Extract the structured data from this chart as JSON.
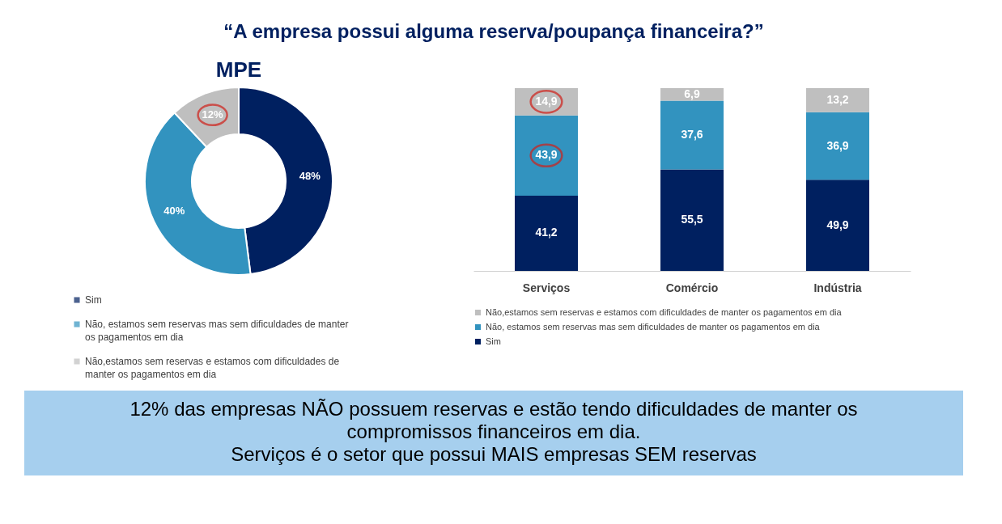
{
  "chart_data": [
    {
      "type": "donut",
      "title": "“A empresa possui alguma reserva/poupança financeira?”",
      "subtitle": "MPE",
      "categories": [
        "Sim",
        "Não, estamos sem reservas mas sem dificuldades de manter os pagamentos em dia",
        "Não,estamos sem reservas e estamos com dificuldades de manter os pagamentos em dia"
      ],
      "values": [
        48,
        40,
        12
      ],
      "value_labels": [
        "48%",
        "40%",
        "12%"
      ],
      "colors": [
        "#002060",
        "#3293bf",
        "#bfbfbf"
      ],
      "legend": "bottom left"
    },
    {
      "type": "bar",
      "stacked": true,
      "categories": [
        "Serviços",
        "Comércio",
        "Indústria"
      ],
      "series": [
        {
          "name": "Sim",
          "color": "#002060",
          "values": [
            41.2,
            55.5,
            49.9
          ],
          "value_labels": [
            "41,2",
            "55,5",
            "49,9"
          ]
        },
        {
          "name": "Não, estamos sem reservas mas sem dificuldades de manter os pagamentos em dia",
          "color": "#3293bf",
          "values": [
            43.9,
            37.6,
            36.9
          ],
          "value_labels": [
            "43,9",
            "37,6",
            "36,9"
          ]
        },
        {
          "name": "Não,estamos sem reservas e estamos com dificuldades de manter os pagamentos em dia",
          "color": "#bfbfbf",
          "values": [
            14.9,
            6.9,
            13.2
          ],
          "value_labels": [
            "14,9",
            "6,9",
            "13,2"
          ]
        }
      ],
      "legend": "bottom",
      "annotations": [
        "12% das empresas NÃO possuem reservas e estão tendo dificuldades de manter os compromissos financeiros em dia.",
        "Serviços é o setor que possui MAIS empresas SEM reservas"
      ]
    }
  ]
}
